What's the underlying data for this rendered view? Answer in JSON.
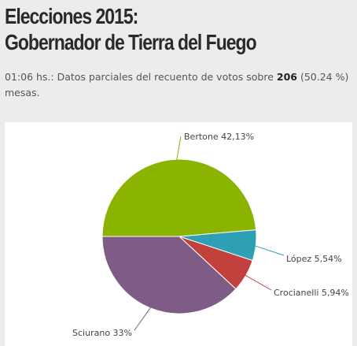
{
  "header": {
    "title_line1": "Elecciones 2015:",
    "title_line2": "Gobernador de Tierra del Fuego",
    "update_time": "01:06",
    "update_prefix": " hs.: Datos parciales del recuento de votos sobre ",
    "tables_count": "206",
    "tables_suffix": " (50.24 %) mesas."
  },
  "chart_data": {
    "type": "pie",
    "title": "",
    "slices": [
      {
        "name": "Bertone",
        "value": 42.13,
        "label": "Bertone 42,13%",
        "color": "#8ab400"
      },
      {
        "name": "López",
        "value": 5.54,
        "label": "López 5,54%",
        "color": "#2f9fb5"
      },
      {
        "name": "Crocianelli",
        "value": 5.94,
        "label": "Crocianelli 5,94%",
        "color": "#c2413c"
      },
      {
        "name": "Sciurano",
        "value": 33,
        "label": "Sciurano 33%",
        "color": "#7f5c86"
      }
    ]
  }
}
